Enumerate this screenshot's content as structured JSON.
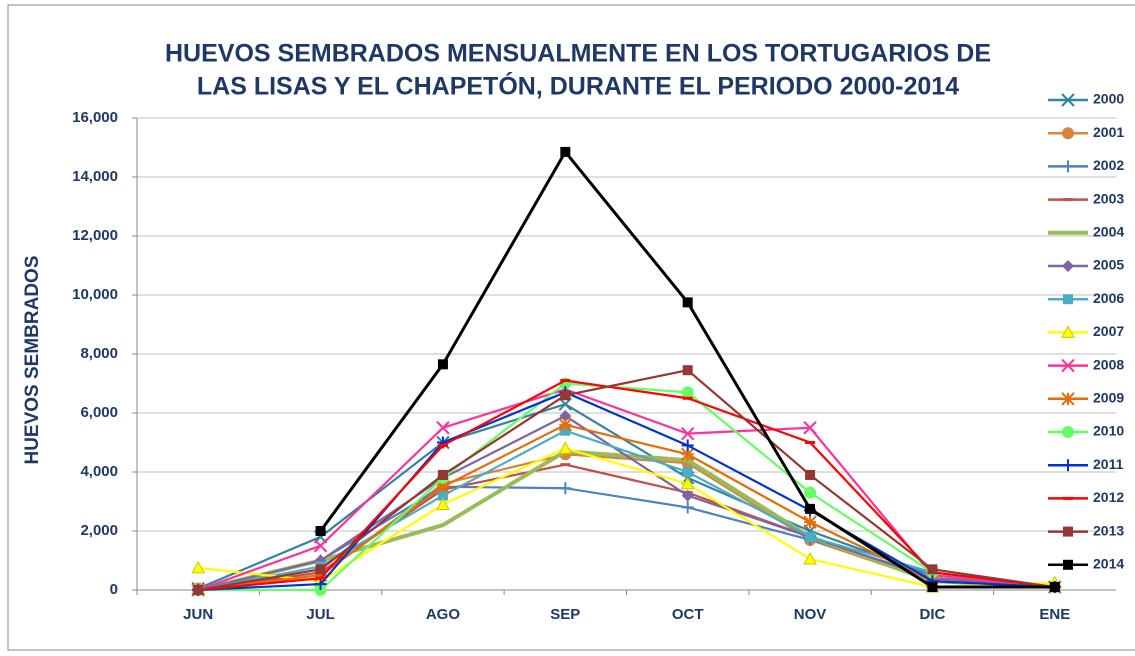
{
  "chart_data": {
    "type": "line",
    "title": [
      "HUEVOS SEMBRADOS MENSUALMENTE EN LOS TORTUGARIOS DE",
      "LAS LISAS Y EL CHAPETÓN, DURANTE EL PERIODO 2000-2014"
    ],
    "y_label": "HUEVOS SEMBRADOS",
    "categories": [
      "JUN",
      "JUL",
      "AGO",
      "SEP",
      "OCT",
      "NOV",
      "DIC",
      "ENE"
    ],
    "ylim": [
      0,
      16000
    ],
    "yticks": [
      0,
      {
        "value": 2000,
        "label": "2,000"
      },
      {
        "value": 4000,
        "label": "4,000"
      },
      {
        "value": 6000,
        "label": "6,000"
      },
      {
        "value": 8000,
        "label": "8,000"
      },
      {
        "value": 10000,
        "label": "10,000"
      },
      {
        "value": 12000,
        "label": "12,000"
      },
      {
        "value": 14000,
        "label": "14,000"
      },
      {
        "value": 16000,
        "label": "16,000"
      }
    ],
    "grid": true,
    "legend": "right",
    "series": [
      {
        "name": "2000",
        "color": "#31859c",
        "marker": "x",
        "values": [
          50,
          1800,
          5000,
          6300,
          3800,
          2000,
          500,
          100
        ]
      },
      {
        "name": "2001",
        "color": "#d9843b",
        "marker": "circle",
        "values": [
          50,
          500,
          3600,
          4600,
          4300,
          1700,
          300,
          100
        ]
      },
      {
        "name": "2002",
        "color": "#4f81bd",
        "marker": "plus",
        "values": [
          0,
          1000,
          3500,
          3450,
          2800,
          1700,
          500,
          100
        ]
      },
      {
        "name": "2003",
        "color": "#c0504d",
        "marker": "dash",
        "values": [
          0,
          600,
          3400,
          4250,
          3300,
          1800,
          400,
          100
        ]
      },
      {
        "name": "2004",
        "color": "#9bbb59",
        "marker": "none",
        "values": [
          0,
          1000,
          2200,
          4700,
          4400,
          1800,
          300,
          100
        ]
      },
      {
        "name": "2005",
        "color": "#8064a2",
        "marker": "diamond",
        "values": [
          0,
          1000,
          3800,
          5900,
          3200,
          1800,
          400,
          100
        ]
      },
      {
        "name": "2006",
        "color": "#4bacc6",
        "marker": "square",
        "values": [
          0,
          800,
          3200,
          5400,
          4000,
          1800,
          600,
          100
        ]
      },
      {
        "name": "2007",
        "color": "#ffff00",
        "marker": "triangle",
        "values": [
          750,
          300,
          2900,
          4800,
          3600,
          1050,
          100,
          250
        ]
      },
      {
        "name": "2008",
        "color": "#ff3399",
        "marker": "x",
        "values": [
          0,
          1500,
          5500,
          6800,
          5300,
          5500,
          500,
          100
        ]
      },
      {
        "name": "2009",
        "color": "#e46c0a",
        "marker": "asterisk",
        "values": [
          0,
          500,
          3500,
          5600,
          4600,
          2300,
          300,
          100
        ]
      },
      {
        "name": "2010",
        "color": "#66ff66",
        "marker": "circle",
        "values": [
          0,
          0,
          3800,
          7000,
          6700,
          3300,
          600,
          100
        ]
      },
      {
        "name": "2011",
        "color": "#0033cc",
        "marker": "plus",
        "values": [
          0,
          200,
          5000,
          6700,
          4900,
          2700,
          300,
          100
        ]
      },
      {
        "name": "2012",
        "color": "#ff0000",
        "marker": "dash",
        "values": [
          0,
          400,
          4900,
          7100,
          6500,
          5000,
          600,
          100
        ]
      },
      {
        "name": "2013",
        "color": "#953735",
        "marker": "square",
        "values": [
          0,
          700,
          3900,
          6600,
          7450,
          3900,
          700,
          100
        ]
      },
      {
        "name": "2014",
        "color": "#000000",
        "marker": "square",
        "values": [
          null,
          2000,
          7650,
          14850,
          9750,
          2750,
          100,
          100
        ]
      }
    ]
  }
}
